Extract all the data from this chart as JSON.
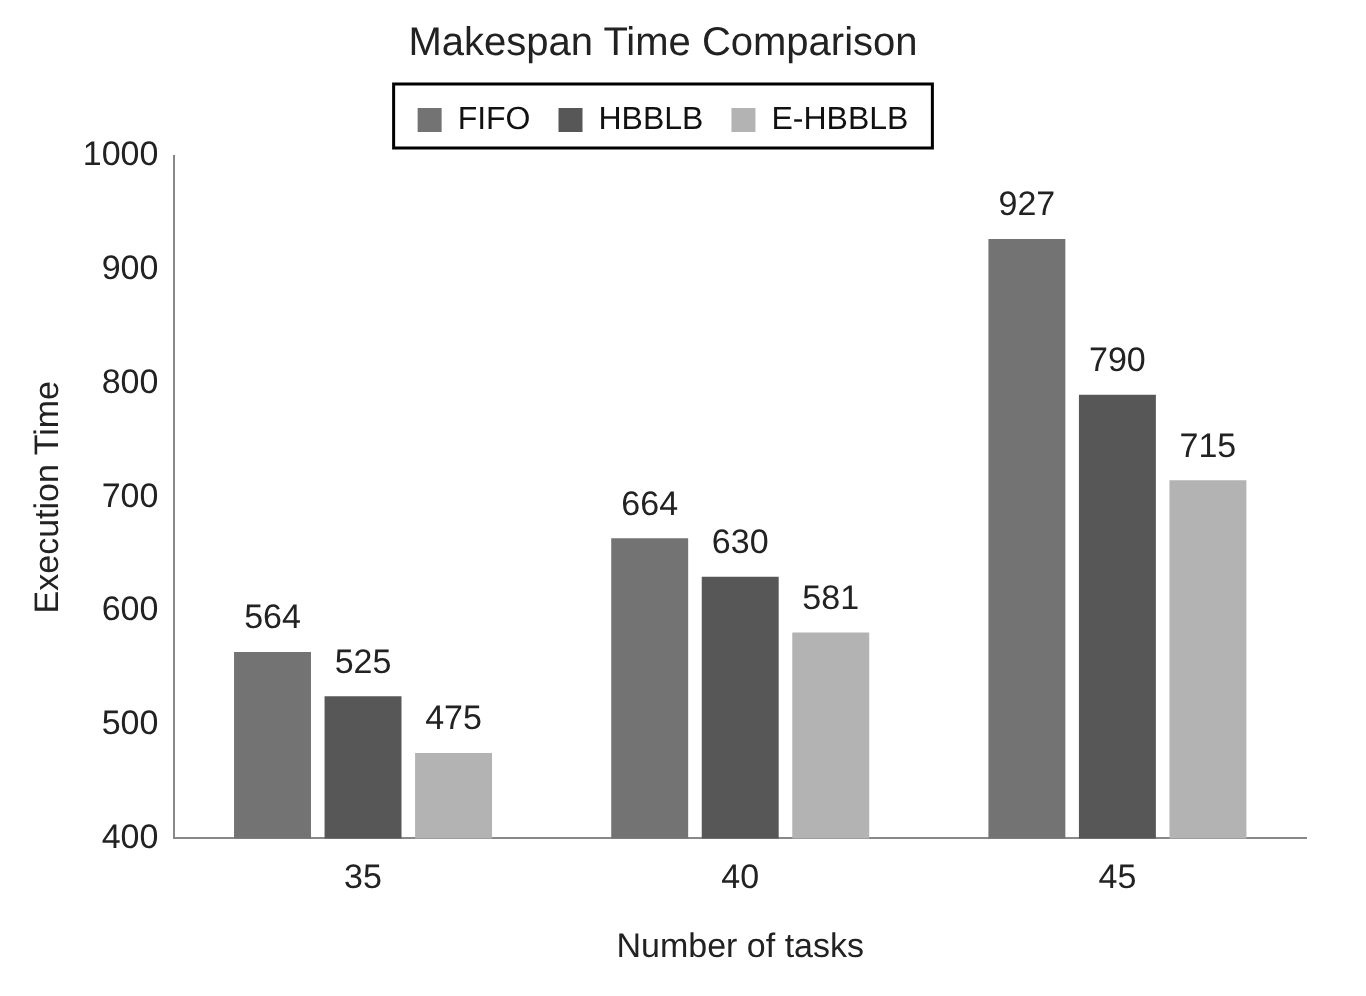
{
  "chart_data": {
    "type": "bar",
    "title": "Makespan Time Comparison",
    "xlabel": "Number of tasks",
    "ylabel": "Execution Time",
    "categories": [
      "35",
      "40",
      "45"
    ],
    "series": [
      {
        "name": "FIFO",
        "color": "#737373",
        "values": [
          564,
          664,
          927
        ]
      },
      {
        "name": "HBBLB",
        "color": "#575757",
        "values": [
          525,
          630,
          790
        ]
      },
      {
        "name": "E-HBBLB",
        "color": "#b3b3b3",
        "values": [
          475,
          581,
          715
        ]
      }
    ],
    "ylim": [
      400,
      1000
    ],
    "yticks": [
      400,
      500,
      600,
      700,
      800,
      900,
      1000
    ],
    "grid": false,
    "legend": "top",
    "data_labels": true
  }
}
